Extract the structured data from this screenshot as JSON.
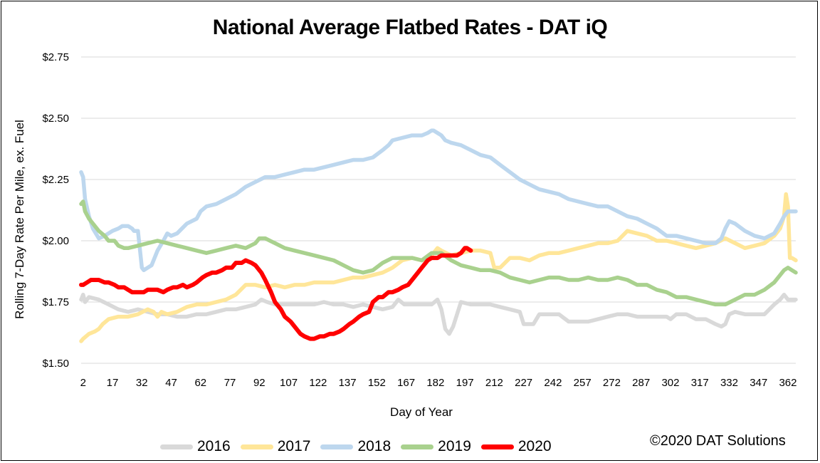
{
  "chart_data": {
    "type": "line",
    "title": "National Average Flatbed Rates - DAT iQ",
    "xlabel": "Day of Year",
    "ylabel": "Rolling 7-Day Rate Per Mile, ex. Fuel",
    "xlim": [
      1,
      366
    ],
    "ylim": [
      1.5,
      2.75
    ],
    "yticks": [
      1.5,
      1.75,
      2.0,
      2.25,
      2.5,
      2.75
    ],
    "ytick_labels": [
      "$1.50",
      "$1.75",
      "$2.00",
      "$2.25",
      "$2.50",
      "$2.75"
    ],
    "xticks": [
      2,
      17,
      32,
      47,
      62,
      77,
      92,
      107,
      122,
      137,
      152,
      167,
      182,
      197,
      212,
      227,
      242,
      257,
      272,
      287,
      302,
      317,
      332,
      347,
      362
    ],
    "grid": "horizontal",
    "legend_position": "bottom",
    "credit": "©2020 DAT Solutions",
    "series": [
      {
        "name": "2016",
        "color": "#d9d9d9",
        "x": [
          1,
          2,
          3,
          5,
          10,
          15,
          20,
          25,
          30,
          35,
          40,
          45,
          50,
          55,
          60,
          65,
          70,
          75,
          80,
          85,
          90,
          93,
          96,
          100,
          105,
          110,
          115,
          120,
          125,
          130,
          135,
          140,
          145,
          150,
          155,
          160,
          163,
          166,
          170,
          175,
          180,
          183,
          185,
          187,
          189,
          191,
          193,
          195,
          200,
          205,
          210,
          215,
          220,
          225,
          227,
          230,
          232,
          235,
          238,
          240,
          245,
          250,
          255,
          260,
          265,
          270,
          275,
          280,
          285,
          290,
          295,
          300,
          302,
          305,
          310,
          315,
          320,
          325,
          328,
          330,
          332,
          335,
          340,
          345,
          350,
          355,
          358,
          360,
          362,
          364,
          366
        ],
        "y": [
          1.76,
          1.78,
          1.75,
          1.77,
          1.76,
          1.74,
          1.72,
          1.71,
          1.72,
          1.71,
          1.7,
          1.7,
          1.69,
          1.69,
          1.7,
          1.7,
          1.71,
          1.72,
          1.72,
          1.73,
          1.74,
          1.76,
          1.75,
          1.74,
          1.74,
          1.74,
          1.74,
          1.74,
          1.75,
          1.74,
          1.74,
          1.73,
          1.74,
          1.73,
          1.72,
          1.73,
          1.76,
          1.74,
          1.74,
          1.74,
          1.74,
          1.76,
          1.72,
          1.64,
          1.62,
          1.65,
          1.7,
          1.75,
          1.74,
          1.74,
          1.74,
          1.73,
          1.72,
          1.71,
          1.66,
          1.66,
          1.66,
          1.7,
          1.7,
          1.7,
          1.7,
          1.67,
          1.67,
          1.67,
          1.68,
          1.69,
          1.7,
          1.7,
          1.69,
          1.69,
          1.69,
          1.69,
          1.68,
          1.7,
          1.7,
          1.68,
          1.68,
          1.66,
          1.65,
          1.66,
          1.7,
          1.71,
          1.7,
          1.7,
          1.7,
          1.74,
          1.76,
          1.78,
          1.76,
          1.76,
          1.76
        ]
      },
      {
        "name": "2017",
        "color": "#ffe699",
        "x": [
          1,
          2,
          5,
          8,
          10,
          12,
          15,
          20,
          25,
          30,
          35,
          38,
          40,
          42,
          45,
          50,
          55,
          60,
          65,
          70,
          75,
          80,
          85,
          90,
          95,
          100,
          105,
          110,
          115,
          120,
          125,
          130,
          135,
          140,
          145,
          150,
          155,
          160,
          165,
          170,
          175,
          180,
          183,
          185,
          190,
          195,
          200,
          205,
          210,
          212,
          215,
          220,
          225,
          230,
          235,
          240,
          245,
          250,
          255,
          260,
          265,
          270,
          275,
          280,
          285,
          290,
          295,
          300,
          305,
          310,
          315,
          320,
          325,
          330,
          335,
          340,
          345,
          350,
          355,
          358,
          360,
          361,
          362,
          363,
          364,
          366
        ],
        "y": [
          1.59,
          1.6,
          1.62,
          1.63,
          1.64,
          1.66,
          1.68,
          1.69,
          1.69,
          1.7,
          1.72,
          1.71,
          1.69,
          1.71,
          1.7,
          1.71,
          1.73,
          1.74,
          1.74,
          1.75,
          1.76,
          1.78,
          1.82,
          1.82,
          1.81,
          1.82,
          1.81,
          1.82,
          1.82,
          1.83,
          1.83,
          1.83,
          1.84,
          1.85,
          1.85,
          1.86,
          1.87,
          1.89,
          1.92,
          1.93,
          1.92,
          1.94,
          1.97,
          1.96,
          1.94,
          1.95,
          1.96,
          1.96,
          1.95,
          1.89,
          1.89,
          1.93,
          1.93,
          1.92,
          1.94,
          1.95,
          1.95,
          1.96,
          1.97,
          1.98,
          1.99,
          1.99,
          2.0,
          2.04,
          2.03,
          2.02,
          2.0,
          2.0,
          1.99,
          1.98,
          1.97,
          1.98,
          1.99,
          2.01,
          1.99,
          1.97,
          1.98,
          1.99,
          2.02,
          2.05,
          2.1,
          2.19,
          2.14,
          1.93,
          1.93,
          1.92
        ]
      },
      {
        "name": "2018",
        "color": "#bdd7ee",
        "x": [
          1,
          2,
          3,
          5,
          7,
          10,
          13,
          17,
          20,
          22,
          25,
          27,
          28,
          30,
          32,
          33,
          35,
          37,
          40,
          43,
          45,
          47,
          50,
          55,
          60,
          62,
          65,
          70,
          75,
          80,
          85,
          90,
          95,
          100,
          105,
          110,
          115,
          120,
          125,
          130,
          135,
          140,
          145,
          150,
          155,
          158,
          160,
          165,
          170,
          175,
          178,
          180,
          181,
          183,
          185,
          187,
          190,
          195,
          200,
          205,
          210,
          215,
          220,
          225,
          230,
          235,
          240,
          245,
          250,
          255,
          260,
          265,
          270,
          275,
          280,
          285,
          290,
          295,
          300,
          305,
          310,
          315,
          320,
          325,
          328,
          330,
          332,
          335,
          340,
          345,
          350,
          355,
          358,
          360,
          362,
          364,
          366
        ],
        "y": [
          2.28,
          2.26,
          2.17,
          2.1,
          2.05,
          2.01,
          2.02,
          2.04,
          2.05,
          2.06,
          2.06,
          2.05,
          2.04,
          2.04,
          1.89,
          1.88,
          1.89,
          1.9,
          1.96,
          2.0,
          2.03,
          2.02,
          2.03,
          2.07,
          2.09,
          2.12,
          2.14,
          2.15,
          2.17,
          2.19,
          2.22,
          2.24,
          2.26,
          2.26,
          2.27,
          2.28,
          2.29,
          2.29,
          2.3,
          2.31,
          2.32,
          2.33,
          2.33,
          2.34,
          2.37,
          2.39,
          2.41,
          2.42,
          2.43,
          2.43,
          2.44,
          2.45,
          2.45,
          2.44,
          2.43,
          2.41,
          2.4,
          2.39,
          2.37,
          2.35,
          2.34,
          2.31,
          2.28,
          2.25,
          2.23,
          2.21,
          2.2,
          2.19,
          2.17,
          2.16,
          2.15,
          2.14,
          2.14,
          2.12,
          2.1,
          2.09,
          2.07,
          2.05,
          2.02,
          2.02,
          2.01,
          2.0,
          1.99,
          1.99,
          2.01,
          2.05,
          2.08,
          2.07,
          2.04,
          2.02,
          2.01,
          2.03,
          2.07,
          2.1,
          2.12,
          2.12,
          2.12
        ]
      },
      {
        "name": "2019",
        "color": "#a9d18e",
        "x": [
          1,
          2,
          3,
          5,
          8,
          10,
          13,
          15,
          18,
          20,
          23,
          25,
          30,
          35,
          40,
          45,
          50,
          55,
          60,
          65,
          70,
          75,
          80,
          85,
          90,
          92,
          95,
          100,
          105,
          110,
          115,
          120,
          125,
          130,
          135,
          140,
          145,
          150,
          155,
          160,
          165,
          170,
          175,
          180,
          185,
          190,
          195,
          200,
          205,
          210,
          215,
          220,
          225,
          230,
          235,
          240,
          245,
          250,
          255,
          260,
          265,
          270,
          275,
          280,
          285,
          290,
          295,
          300,
          305,
          310,
          315,
          320,
          325,
          330,
          335,
          340,
          345,
          350,
          355,
          358,
          360,
          362,
          364,
          366
        ],
        "y": [
          2.15,
          2.16,
          2.12,
          2.09,
          2.06,
          2.04,
          2.02,
          2.0,
          2.0,
          1.98,
          1.97,
          1.97,
          1.98,
          1.99,
          2.0,
          1.99,
          1.98,
          1.97,
          1.96,
          1.95,
          1.96,
          1.97,
          1.98,
          1.97,
          1.99,
          2.01,
          2.01,
          1.99,
          1.97,
          1.96,
          1.95,
          1.94,
          1.93,
          1.92,
          1.9,
          1.88,
          1.87,
          1.88,
          1.91,
          1.93,
          1.93,
          1.93,
          1.92,
          1.95,
          1.95,
          1.92,
          1.9,
          1.89,
          1.88,
          1.88,
          1.87,
          1.85,
          1.84,
          1.83,
          1.84,
          1.85,
          1.85,
          1.84,
          1.84,
          1.85,
          1.84,
          1.84,
          1.85,
          1.84,
          1.82,
          1.82,
          1.8,
          1.79,
          1.77,
          1.77,
          1.76,
          1.75,
          1.74,
          1.74,
          1.76,
          1.78,
          1.78,
          1.8,
          1.83,
          1.86,
          1.88,
          1.89,
          1.88,
          1.87
        ]
      },
      {
        "name": "2020",
        "color": "#ff0000",
        "x": [
          1,
          2,
          4,
          6,
          8,
          10,
          13,
          15,
          18,
          20,
          23,
          25,
          27,
          30,
          33,
          35,
          38,
          40,
          43,
          45,
          48,
          50,
          53,
          55,
          58,
          60,
          63,
          65,
          68,
          70,
          73,
          75,
          78,
          80,
          83,
          85,
          88,
          90,
          93,
          95,
          98,
          100,
          103,
          105,
          108,
          110,
          113,
          115,
          118,
          120,
          123,
          125,
          128,
          130,
          133,
          135,
          138,
          140,
          143,
          145,
          148,
          150,
          153,
          155,
          158,
          160,
          163,
          165,
          168,
          170,
          173,
          175,
          178,
          180,
          183,
          185,
          188,
          190,
          193,
          195,
          197,
          198,
          200
        ],
        "y": [
          1.82,
          1.82,
          1.83,
          1.84,
          1.84,
          1.84,
          1.83,
          1.83,
          1.82,
          1.81,
          1.81,
          1.8,
          1.79,
          1.79,
          1.79,
          1.8,
          1.8,
          1.8,
          1.79,
          1.8,
          1.81,
          1.81,
          1.82,
          1.81,
          1.82,
          1.83,
          1.85,
          1.86,
          1.87,
          1.87,
          1.88,
          1.89,
          1.89,
          1.91,
          1.91,
          1.92,
          1.91,
          1.9,
          1.87,
          1.84,
          1.79,
          1.75,
          1.72,
          1.69,
          1.67,
          1.65,
          1.62,
          1.61,
          1.6,
          1.6,
          1.61,
          1.61,
          1.62,
          1.62,
          1.63,
          1.64,
          1.66,
          1.67,
          1.69,
          1.7,
          1.71,
          1.75,
          1.77,
          1.77,
          1.79,
          1.79,
          1.8,
          1.81,
          1.82,
          1.84,
          1.87,
          1.89,
          1.92,
          1.93,
          1.93,
          1.94,
          1.94,
          1.94,
          1.94,
          1.95,
          1.97,
          1.97,
          1.96
        ]
      }
    ]
  }
}
